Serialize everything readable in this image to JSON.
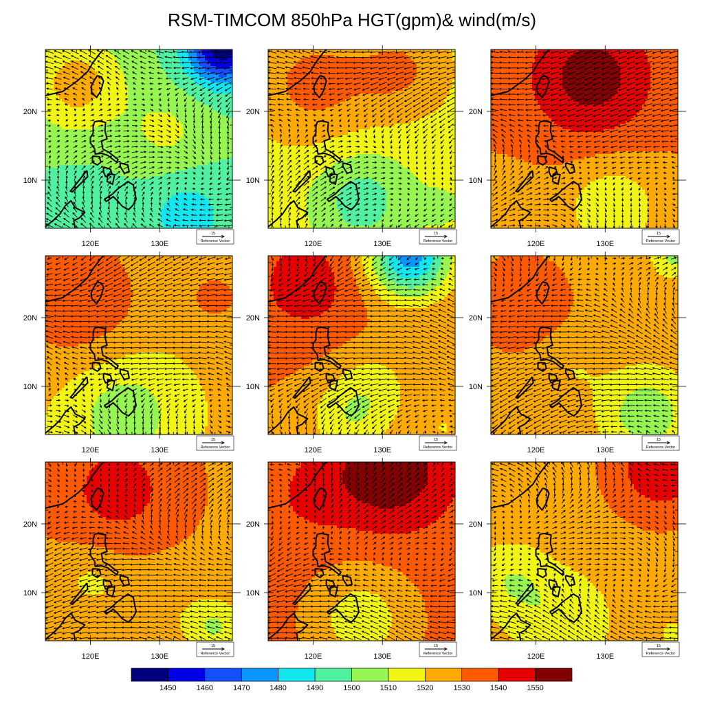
{
  "figure": {
    "title": "RSM-TIMCOM 850hPa HGT(gpm)& wind(m/s)"
  },
  "axes": {
    "x_ticks": [
      "120E",
      "130E"
    ],
    "y_ticks": [
      "20N",
      "10N"
    ]
  },
  "reference_vector": {
    "magnitude_label": "15",
    "caption": "Reference Vector"
  },
  "colorbar": {
    "levels": [
      1450,
      1460,
      1470,
      1480,
      1490,
      1500,
      1510,
      1520,
      1530,
      1540,
      1550
    ],
    "colors": [
      "#00007f",
      "#0000e6",
      "#1450ff",
      "#0a96ff",
      "#14e6f0",
      "#50f0a0",
      "#96f550",
      "#f0f514",
      "#ffaa00",
      "#ff5a00",
      "#e60000",
      "#820000"
    ]
  },
  "map": {
    "lon_range": [
      113.5,
      140.5
    ],
    "lat_range": [
      3,
      29
    ],
    "panels": [
      {
        "id": "p1",
        "base": 1500,
        "blobs": [
          {
            "lon": 118,
            "lat": 24,
            "r": 7,
            "d": 25
          },
          {
            "lon": 131,
            "lat": 17,
            "r": 6,
            "d": 12
          },
          {
            "lon": 139,
            "lat": 29,
            "r": 5,
            "d": -55
          },
          {
            "lon": 134,
            "lat": 5,
            "r": 6,
            "d": -15
          },
          {
            "lon": 119,
            "lat": 6,
            "r": 5,
            "d": -8
          }
        ]
      },
      {
        "id": "p2",
        "base": 1515,
        "blobs": [
          {
            "lon": 120,
            "lat": 24,
            "r": 9,
            "d": 18
          },
          {
            "lon": 133,
            "lat": 26,
            "r": 7,
            "d": 15
          },
          {
            "lon": 127,
            "lat": 7,
            "r": 7,
            "d": -20
          },
          {
            "lon": 139,
            "lat": 6,
            "r": 4,
            "d": -6
          }
        ]
      },
      {
        "id": "p3",
        "base": 1530,
        "blobs": [
          {
            "lon": 128,
            "lat": 25,
            "r": 9,
            "d": 25
          },
          {
            "lon": 131,
            "lat": 6,
            "r": 7,
            "d": -18
          },
          {
            "lon": 116,
            "lat": 6,
            "r": 5,
            "d": -8
          }
        ]
      },
      {
        "id": "p4",
        "base": 1522,
        "blobs": [
          {
            "lon": 118,
            "lat": 23,
            "r": 9,
            "d": 18
          },
          {
            "lon": 138,
            "lat": 23,
            "r": 5,
            "d": 10
          },
          {
            "lon": 125,
            "lat": 6,
            "r": 8,
            "d": -18
          }
        ]
      },
      {
        "id": "p5",
        "base": 1530,
        "blobs": [
          {
            "lon": 119,
            "lat": 25,
            "r": 8,
            "d": 15
          },
          {
            "lon": 134,
            "lat": 29,
            "r": 6,
            "d": -55
          },
          {
            "lon": 129,
            "lat": 10,
            "r": 6,
            "d": -12
          },
          {
            "lon": 125,
            "lat": 5,
            "r": 6,
            "d": -16
          },
          {
            "lon": 139,
            "lat": 4,
            "r": 3,
            "d": -10
          }
        ]
      },
      {
        "id": "p6",
        "base": 1525,
        "blobs": [
          {
            "lon": 118,
            "lat": 22,
            "r": 8,
            "d": 12
          },
          {
            "lon": 125,
            "lat": 13,
            "r": 5,
            "d": -6
          },
          {
            "lon": 136,
            "lat": 6,
            "r": 6,
            "d": -22
          },
          {
            "lon": 140,
            "lat": 29,
            "r": 3,
            "d": -18
          }
        ]
      },
      {
        "id": "p7",
        "base": 1528,
        "blobs": [
          {
            "lon": 124,
            "lat": 25,
            "r": 9,
            "d": 16
          },
          {
            "lon": 120,
            "lat": 12,
            "r": 5,
            "d": -10
          },
          {
            "lon": 138,
            "lat": 5,
            "r": 4,
            "d": -18
          },
          {
            "lon": 130,
            "lat": 8,
            "r": 7,
            "d": -6
          }
        ]
      },
      {
        "id": "p8",
        "base": 1535,
        "blobs": [
          {
            "lon": 131,
            "lat": 28,
            "r": 8,
            "d": 25
          },
          {
            "lon": 120,
            "lat": 24,
            "r": 6,
            "d": 6
          },
          {
            "lon": 127,
            "lat": 6,
            "r": 8,
            "d": -20
          }
        ]
      },
      {
        "id": "p9",
        "base": 1528,
        "blobs": [
          {
            "lon": 138,
            "lat": 28,
            "r": 6,
            "d": 22
          },
          {
            "lon": 116,
            "lat": 12,
            "r": 6,
            "d": -15
          },
          {
            "lon": 124,
            "lat": 6,
            "r": 8,
            "d": -16
          },
          {
            "lon": 140,
            "lat": 4,
            "r": 3,
            "d": -10
          }
        ]
      }
    ]
  }
}
